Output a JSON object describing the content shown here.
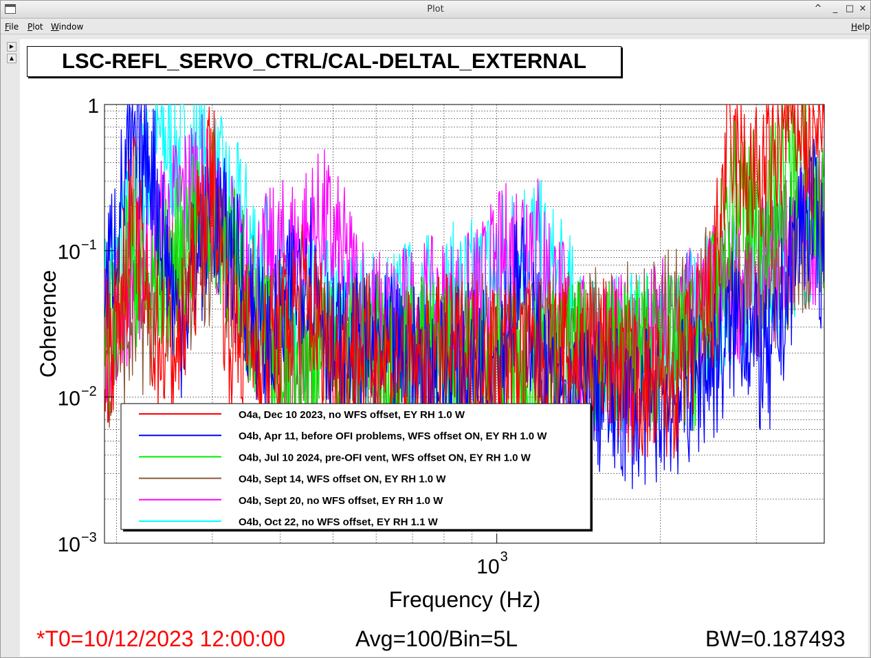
{
  "window": {
    "title": "Plot",
    "controls": [
      "^",
      "_",
      "□",
      "×"
    ]
  },
  "menubar": {
    "file": "File",
    "plot": "Plot",
    "window": "Window",
    "help": "Help"
  },
  "plot_title": "LSC-REFL_SERVO_CTRL/CAL-DELTAL_EXTERNAL",
  "footer": {
    "t0": "*T0=10/12/2023 12:00:00",
    "avg": "Avg=100/Bin=5L",
    "bw": "BW=0.187493"
  },
  "colors": {
    "red": "#ff0000",
    "blue": "#0000ff",
    "green": "#00ee00",
    "brown": "#8b5a3c",
    "magenta": "#ff00ff",
    "cyan": "#00ffff"
  },
  "chart_data": {
    "type": "line",
    "xlabel": "Frequency (Hz)",
    "ylabel": "Coherence",
    "x_scale": "log",
    "y_scale": "log",
    "xlim": [
      190,
      4000
    ],
    "ylim": [
      0.001,
      1
    ],
    "x_tick_label": "10",
    "x_tick_exp": "3",
    "y_tick_labels": [
      {
        "value": 1,
        "base": "1",
        "exp": ""
      },
      {
        "value": 0.1,
        "base": "10",
        "exp": "−1"
      },
      {
        "value": 0.01,
        "base": "10",
        "exp": "−2"
      },
      {
        "value": 0.001,
        "base": "10",
        "exp": "−3"
      }
    ],
    "grid": true,
    "legend_position": "lower-left",
    "series": [
      {
        "name": "O4a, Dec 10 2023, no WFS offset, EY RH 1.0 W",
        "color": "#ff0000",
        "points": [
          [
            190,
            0.02
          ],
          [
            200,
            0.03
          ],
          [
            215,
            0.2
          ],
          [
            230,
            0.03
          ],
          [
            260,
            0.02
          ],
          [
            300,
            0.4
          ],
          [
            320,
            0.03
          ],
          [
            380,
            0.02
          ],
          [
            440,
            0.05
          ],
          [
            500,
            0.02
          ],
          [
            600,
            0.02
          ],
          [
            700,
            0.015
          ],
          [
            800,
            0.02
          ],
          [
            1000,
            0.02
          ],
          [
            1200,
            0.018
          ],
          [
            1500,
            0.02
          ],
          [
            1600,
            0.02
          ],
          [
            1800,
            0.012
          ],
          [
            2000,
            0.01
          ],
          [
            2200,
            0.015
          ],
          [
            2500,
            0.05
          ],
          [
            2650,
            0.5
          ],
          [
            2800,
            0.35
          ],
          [
            3000,
            0.3
          ],
          [
            3200,
            0.35
          ],
          [
            3400,
            0.8
          ],
          [
            3600,
            0.9
          ],
          [
            3800,
            0.4
          ],
          [
            3900,
            0.7
          ]
        ]
      },
      {
        "name": "O4b, Apr 11, before OFI problems, WFS offset ON, EY RH 1.0 W",
        "color": "#0000ff",
        "points": [
          [
            190,
            0.05
          ],
          [
            210,
            0.4
          ],
          [
            230,
            0.5
          ],
          [
            260,
            0.03
          ],
          [
            300,
            0.2
          ],
          [
            380,
            0.02
          ],
          [
            450,
            0.1
          ],
          [
            500,
            0.02
          ],
          [
            600,
            0.02
          ],
          [
            800,
            0.015
          ],
          [
            1000,
            0.02
          ],
          [
            1100,
            0.06
          ],
          [
            1300,
            0.008
          ],
          [
            1500,
            0.01
          ],
          [
            1800,
            0.008
          ],
          [
            2200,
            0.01
          ],
          [
            2600,
            0.02
          ],
          [
            2800,
            0.04
          ],
          [
            3000,
            0.02
          ],
          [
            3200,
            0.015
          ],
          [
            3400,
            0.05
          ],
          [
            3600,
            0.15
          ],
          [
            3800,
            0.2
          ],
          [
            3900,
            0.1
          ]
        ]
      },
      {
        "name": "O4b, Jul 10 2024, pre-OFI vent, WFS offset ON, EY RH 1.0 W",
        "color": "#00ee00",
        "points": [
          [
            190,
            0.02
          ],
          [
            210,
            0.1
          ],
          [
            230,
            0.05
          ],
          [
            300,
            0.2
          ],
          [
            380,
            0.02
          ],
          [
            500,
            0.02
          ],
          [
            800,
            0.02
          ],
          [
            1200,
            0.015
          ],
          [
            1600,
            0.02
          ],
          [
            2000,
            0.02
          ],
          [
            2300,
            0.02
          ],
          [
            2500,
            0.04
          ],
          [
            2700,
            0.25
          ],
          [
            2900,
            0.2
          ],
          [
            3100,
            0.18
          ],
          [
            3300,
            0.3
          ],
          [
            3500,
            0.5
          ],
          [
            3700,
            0.4
          ],
          [
            3900,
            0.15
          ]
        ]
      },
      {
        "name": "O4b, Sept 14, WFS offset ON, EY RH 1.0 W",
        "color": "#8b5a3c",
        "points": [
          [
            190,
            0.02
          ],
          [
            300,
            0.1
          ],
          [
            400,
            0.02
          ],
          [
            600,
            0.02
          ],
          [
            900,
            0.02
          ],
          [
            1300,
            0.02
          ],
          [
            1800,
            0.025
          ],
          [
            2100,
            0.03
          ],
          [
            2400,
            0.04
          ],
          [
            2800,
            0.06
          ],
          [
            3200,
            0.07
          ],
          [
            3600,
            0.12
          ],
          [
            3900,
            0.15
          ]
        ]
      },
      {
        "name": "O4b, Sept 20, no WFS offset, EY RH 1.0 W",
        "color": "#ff00ff",
        "points": [
          [
            190,
            0.03
          ],
          [
            230,
            0.1
          ],
          [
            280,
            0.3
          ],
          [
            350,
            0.06
          ],
          [
            480,
            0.15
          ],
          [
            600,
            0.03
          ],
          [
            900,
            0.04
          ],
          [
            1150,
            0.15
          ],
          [
            1400,
            0.02
          ],
          [
            1800,
            0.02
          ],
          [
            2400,
            0.04
          ],
          [
            2800,
            0.06
          ],
          [
            3200,
            0.07
          ],
          [
            3600,
            0.15
          ],
          [
            3900,
            0.15
          ]
        ]
      },
      {
        "name": "O4b, Oct 22, no WFS offset, EY RH 1.1 W",
        "color": "#00ffff",
        "points": [
          [
            190,
            0.04
          ],
          [
            240,
            0.6
          ],
          [
            300,
            0.3
          ],
          [
            420,
            0.04
          ],
          [
            600,
            0.03
          ],
          [
            900,
            0.05
          ],
          [
            1150,
            0.12
          ],
          [
            1500,
            0.02
          ],
          [
            2000,
            0.02
          ],
          [
            2600,
            0.05
          ],
          [
            3000,
            0.06
          ],
          [
            3400,
            0.1
          ],
          [
            3900,
            0.18
          ]
        ]
      }
    ]
  }
}
